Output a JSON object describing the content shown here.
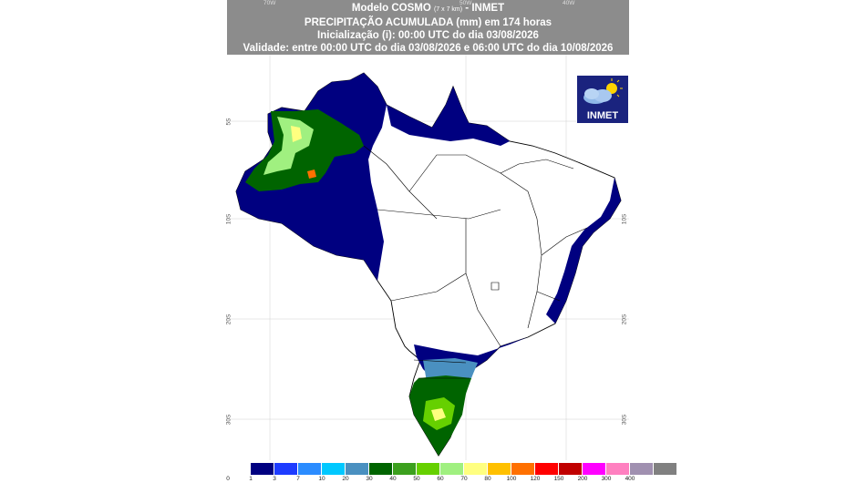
{
  "header": {
    "line1_main": "Modelo COSMO",
    "line1_res": "(7 x 7 km)",
    "line1_tail": "- INMET",
    "line2": "PRECIPITAÇÃO ACUMULADA (mm) em 174 horas",
    "line3": "Inicialização (i): 00:00 UTC do dia 03/08/2026",
    "line4": "Validade: entre 00:00 UTC do dia 03/08/2026 e 06:00 UTC do dia 10/08/2026"
  },
  "longitude_labels": [
    "70W",
    "50W",
    "40W"
  ],
  "latitude_labels": [
    "5S",
    "10S",
    "20S",
    "30S"
  ],
  "logo": {
    "text": "INMET",
    "icon": "cloud-sun-icon"
  },
  "legend": {
    "first_label": "0",
    "swatches": [
      {
        "label": "1",
        "color": "#000080"
      },
      {
        "label": "3",
        "color": "#1e3cff"
      },
      {
        "label": "7",
        "color": "#2b8cff"
      },
      {
        "label": "10",
        "color": "#00c8ff"
      },
      {
        "label": "20",
        "color": "#4a90c0"
      },
      {
        "label": "30",
        "color": "#006400"
      },
      {
        "label": "40",
        "color": "#3ca01e"
      },
      {
        "label": "50",
        "color": "#66d000"
      },
      {
        "label": "60",
        "color": "#a0f080"
      },
      {
        "label": "70",
        "color": "#ffff80"
      },
      {
        "label": "80",
        "color": "#ffc000"
      },
      {
        "label": "100",
        "color": "#ff7000"
      },
      {
        "label": "120",
        "color": "#ff0000"
      },
      {
        "label": "150",
        "color": "#c00000"
      },
      {
        "label": "200",
        "color": "#ff00ff"
      },
      {
        "label": "300",
        "color": "#ff80c0"
      },
      {
        "label": "400",
        "color": "#a090b0"
      },
      {
        "label": "",
        "color": "#808080"
      }
    ]
  }
}
